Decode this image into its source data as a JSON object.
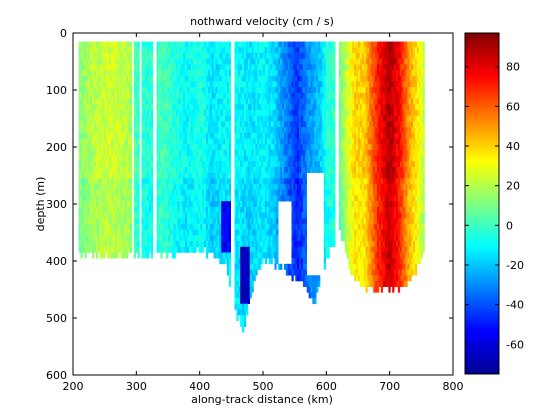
{
  "chart_data": {
    "type": "heatmap",
    "title": "nothward velocity (cm / s)",
    "xlabel": "along-track distance (km)",
    "ylabel": "depth (m)",
    "xlim": [
      200,
      800
    ],
    "ylim": [
      0,
      600
    ],
    "y_reversed": true,
    "x_ticks": [
      "200",
      "300",
      "400",
      "500",
      "600",
      "700",
      "800"
    ],
    "y_ticks": [
      "0",
      "100",
      "200",
      "300",
      "400",
      "500",
      "600"
    ],
    "colorbar": {
      "colormap": "jet",
      "clim": [
        -75,
        97
      ],
      "ticks": [
        "80",
        "60",
        "40",
        "20",
        "0",
        "-20",
        "-40",
        "-60"
      ]
    },
    "data_coverage": {
      "x_range": [
        209,
        755
      ],
      "depth_top": 15,
      "depth_bottom_profile": [
        [
          209,
          385
        ],
        [
          250,
          390
        ],
        [
          300,
          385
        ],
        [
          350,
          385
        ],
        [
          390,
          380
        ],
        [
          420,
          380
        ],
        [
          440,
          400
        ],
        [
          455,
          480
        ],
        [
          470,
          520
        ],
        [
          485,
          430
        ],
        [
          500,
          400
        ],
        [
          520,
          400
        ],
        [
          540,
          420
        ],
        [
          560,
          430
        ],
        [
          580,
          470
        ],
        [
          595,
          410
        ],
        [
          620,
          340
        ],
        [
          640,
          420
        ],
        [
          660,
          440
        ],
        [
          680,
          445
        ],
        [
          700,
          440
        ],
        [
          720,
          440
        ],
        [
          740,
          420
        ],
        [
          755,
          380
        ]
      ],
      "gaps_x": [
        [
          294,
          297
        ],
        [
          305,
          308
        ],
        [
          326,
          333
        ],
        [
          449,
          455
        ],
        [
          615,
          619
        ]
      ]
    },
    "velocity_profile_cm_s": {
      "x": [
        209,
        230,
        260,
        290,
        300,
        320,
        340,
        360,
        380,
        400,
        420,
        440,
        460,
        480,
        500,
        520,
        540,
        555,
        570,
        590,
        600,
        615,
        630,
        645,
        660,
        680,
        700,
        715,
        730,
        745,
        755
      ],
      "v": [
        12,
        20,
        25,
        20,
        0,
        -5,
        2,
        -5,
        -10,
        -5,
        -15,
        -10,
        -10,
        -15,
        -10,
        -18,
        -35,
        -45,
        -30,
        -20,
        -5,
        0,
        20,
        40,
        40,
        70,
        90,
        75,
        50,
        35,
        20
      ]
    },
    "features": [
      {
        "x": 440,
        "depth_top": 290,
        "depth_bottom": 380,
        "v": -55
      },
      {
        "x": 470,
        "depth_top": 370,
        "depth_bottom": 470,
        "v": -65
      }
    ],
    "data_gaps": [
      {
        "x": [
          570,
          595
        ],
        "depth": [
          250,
          420
        ]
      },
      {
        "x": [
          525,
          545
        ],
        "depth": [
          300,
          400
        ]
      }
    ]
  }
}
